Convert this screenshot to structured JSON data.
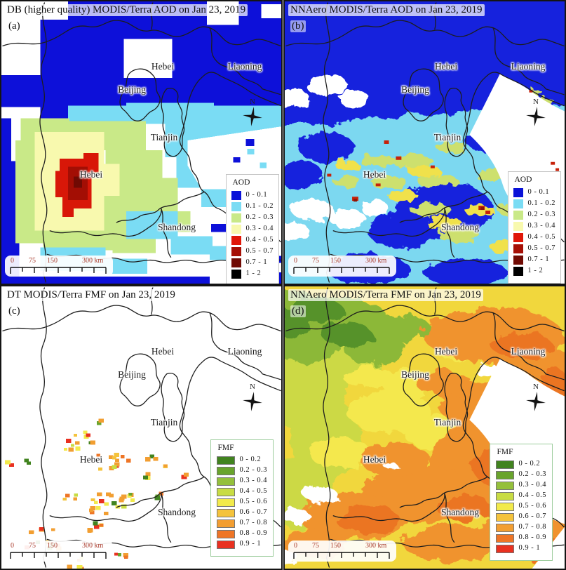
{
  "panels": [
    {
      "tag": "(a)",
      "title": "DB (higher quality) MODIS/Terra AOD on Jan 23, 2019",
      "legend": "aod",
      "labels": {
        "hebei_n": "Hebei",
        "liaoning": "Liaoning",
        "beijing": "Beijing",
        "tianjin": "Tianjin",
        "hebei_s": "Hebei",
        "shandong": "Shandong"
      }
    },
    {
      "tag": "(b)",
      "title": "NNAero MODIS/Terra AOD on Jan 23, 2019",
      "legend": "aod",
      "labels": {
        "hebei_n": "Hebei",
        "liaoning": "Liaoning",
        "beijing": "Beijing",
        "tianjin": "Tianjin",
        "hebei_s": "Hebei",
        "shandong": "Shandong"
      }
    },
    {
      "tag": "(c)",
      "title": "DT MODIS/Terra FMF on Jan 23, 2019",
      "legend": "fmf",
      "labels": {
        "hebei_n": "Hebei",
        "liaoning": "Liaoning",
        "beijing": "Beijing",
        "tianjin": "Tianjin",
        "hebei_s": "Hebei",
        "shandong": "Shandong"
      }
    },
    {
      "tag": "(d)",
      "title": "NNAero MODIS/Terra FMF on Jan 23, 2019",
      "legend": "fmf",
      "labels": {
        "hebei_n": "Hebei",
        "liaoning": "Liaoning",
        "beijing": "Beijing",
        "tianjin": "Tianjin",
        "hebei_s": "Hebei",
        "shandong": "Shandong"
      }
    }
  ],
  "legends": {
    "aod": {
      "title": "AOD",
      "items": [
        {
          "color": "#0a12d8",
          "label": "0 - 0.1"
        },
        {
          "color": "#7adcf4",
          "label": "0.1 - 0.2"
        },
        {
          "color": "#c9e988",
          "label": "0.2 - 0.3"
        },
        {
          "color": "#f8f9ae",
          "label": "0.3 - 0.4"
        },
        {
          "color": "#e01708",
          "label": "0.4 - 0.5"
        },
        {
          "color": "#a60f05",
          "label": "0.5 - 0.7"
        },
        {
          "color": "#700a03",
          "label": "0.7 - 1"
        },
        {
          "color": "#000000",
          "label": "1 - 2"
        }
      ]
    },
    "fmf": {
      "title": "FMF",
      "items": [
        {
          "color": "#41831f",
          "label": "0 - 0.2"
        },
        {
          "color": "#69a42c",
          "label": "0.2 - 0.3"
        },
        {
          "color": "#94c03b",
          "label": "0.3 - 0.4"
        },
        {
          "color": "#c8dc43",
          "label": "0.4 - 0.5"
        },
        {
          "color": "#f2ea4b",
          "label": "0.5 - 0.6"
        },
        {
          "color": "#f4c33c",
          "label": "0.6 - 0.7"
        },
        {
          "color": "#f29e31",
          "label": "0.7 - 0.8"
        },
        {
          "color": "#ee7526",
          "label": "0.8 - 0.9"
        },
        {
          "color": "#e93120",
          "label": "0.9 - 1"
        }
      ]
    }
  },
  "scalebar": {
    "labels": [
      "0",
      "75",
      "150",
      "300 km"
    ]
  },
  "compass": {
    "label": "N"
  }
}
